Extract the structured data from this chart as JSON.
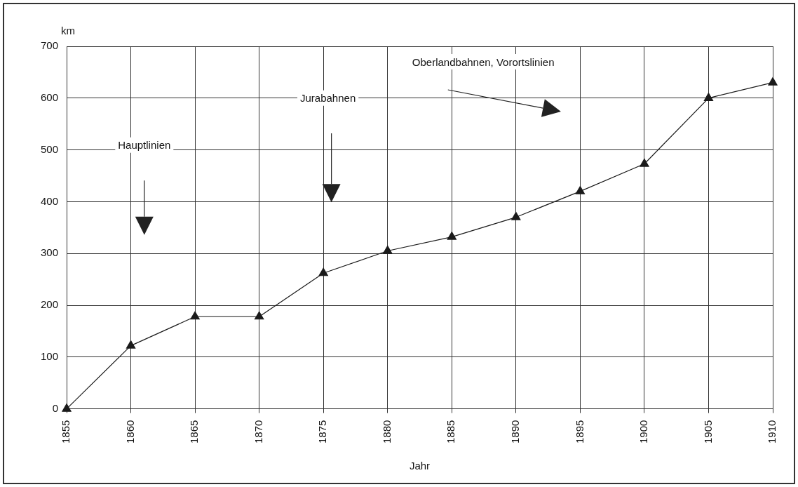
{
  "chart_data": {
    "type": "line",
    "xlabel": "Jahr",
    "ylabel": "km",
    "x": [
      1855,
      1860,
      1865,
      1870,
      1875,
      1880,
      1885,
      1890,
      1895,
      1900,
      1905,
      1910
    ],
    "series": [
      {
        "color": "#1a1a1a",
        "values": [
          0,
          122,
          178,
          178,
          262,
          305,
          332,
          370,
          420,
          473,
          600,
          630
        ]
      }
    ],
    "xlim": [
      1855,
      1910
    ],
    "xticks": [
      1855,
      1860,
      1865,
      1870,
      1875,
      1880,
      1885,
      1890,
      1895,
      1900,
      1905,
      1910
    ],
    "ylim": [
      0,
      700
    ],
    "yticks": [
      0,
      100,
      200,
      300,
      400,
      500,
      600,
      700
    ],
    "grid": true,
    "legend": false,
    "marker": "triangle",
    "line_style": "solid",
    "annotations": [
      "Hauptlinien",
      "Jurabahnen",
      "Oberlandbahnen, Vorortslinien"
    ]
  }
}
